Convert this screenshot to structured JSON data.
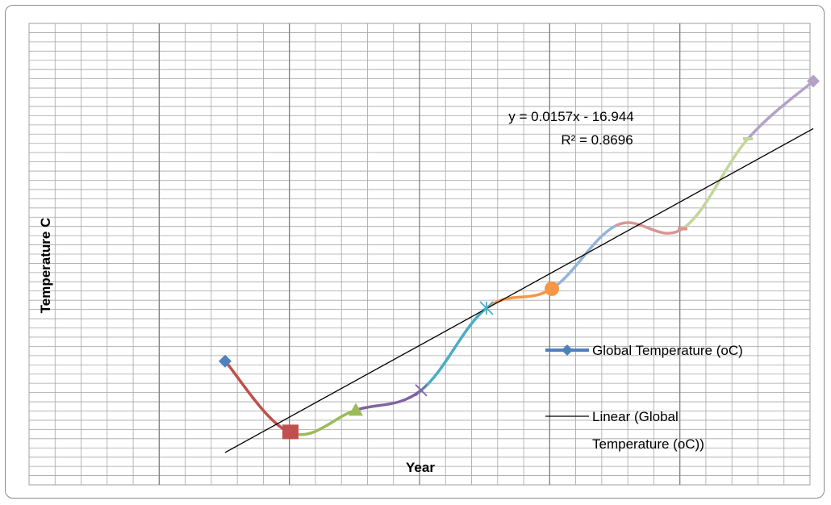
{
  "chart_data": {
    "type": "line",
    "title": "",
    "xlabel": "Year",
    "ylabel": "Temperature C",
    "show_tick_labels": false,
    "grid": true,
    "legend_position": "right",
    "xlim": [
      0,
      10
    ],
    "ylim": [
      0,
      10
    ],
    "series": [
      {
        "name": "Global Temperature (oC)",
        "points": [
          {
            "x": 2,
            "y": 2.68,
            "marker": "diamond",
            "color": "#4f81bd"
          },
          {
            "x": 3,
            "y": 1.13,
            "marker": "square",
            "color": "#c0504d"
          },
          {
            "x": 4,
            "y": 1.62,
            "marker": "triangle",
            "color": "#9bbb59"
          },
          {
            "x": 5,
            "y": 2.05,
            "marker": "x",
            "color": "#8064a2"
          },
          {
            "x": 6,
            "y": 3.83,
            "marker": "star",
            "color": "#4bacc6"
          },
          {
            "x": 7,
            "y": 4.25,
            "marker": "circle",
            "color": "#f79646"
          },
          {
            "x": 8,
            "y": 5.63,
            "marker": "none",
            "color": "#95b3d7"
          },
          {
            "x": 9,
            "y": 5.55,
            "marker": "dash",
            "color": "#d99694"
          },
          {
            "x": 10,
            "y": 7.5,
            "marker": "dash",
            "color": "#c3d69b"
          },
          {
            "x": 11,
            "y": 8.75,
            "marker": "diamond",
            "color": "#b3a2c7"
          }
        ]
      }
    ],
    "trendline": {
      "name": "Linear (Global Temperature (oC))",
      "start": {
        "x": 2,
        "y": 0.7
      },
      "end": {
        "x": 11,
        "y": 7.72
      },
      "equation": "y = 0.0157x - 16.944",
      "r_squared": "R² = 0.8696",
      "color": "#000000"
    },
    "legend": [
      {
        "label": "Global Temperature (oC)",
        "type": "line-marker",
        "color": "#4f81bd"
      },
      {
        "label_lines": [
          "Linear (Global",
          "Temperature (oC))"
        ],
        "type": "line",
        "color": "#000000"
      }
    ]
  }
}
